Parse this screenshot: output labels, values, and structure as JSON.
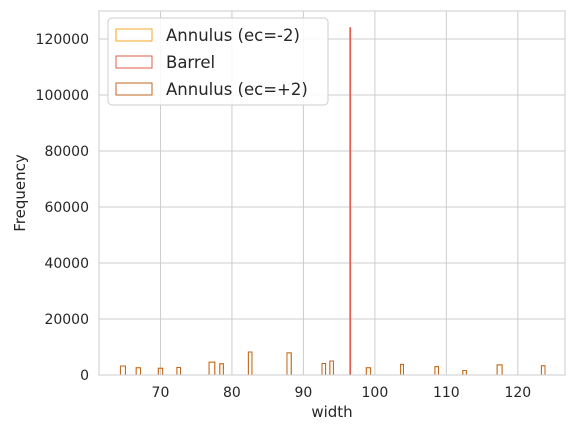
{
  "chart_data": {
    "type": "histogram",
    "title": "",
    "xlabel": "width",
    "ylabel": "Frequency",
    "xlim": [
      61.4,
      126.6
    ],
    "ylim": [
      0,
      130000
    ],
    "xticks": [
      70,
      80,
      90,
      100,
      110,
      120
    ],
    "yticks": [
      0,
      20000,
      40000,
      60000,
      80000,
      100000,
      120000
    ],
    "grid": true,
    "legend_position": "top-left",
    "series": [
      {
        "name": "Annulus (ec=-2)",
        "color": "#f5a623",
        "bins": [
          {
            "x0": 64.4,
            "x1": 65.1,
            "y": 3200
          },
          {
            "x0": 66.6,
            "x1": 67.2,
            "y": 2600
          },
          {
            "x0": 69.7,
            "x1": 70.3,
            "y": 2400
          },
          {
            "x0": 72.3,
            "x1": 72.8,
            "y": 2700
          },
          {
            "x0": 76.8,
            "x1": 77.6,
            "y": 4600
          },
          {
            "x0": 78.3,
            "x1": 78.8,
            "y": 4000
          },
          {
            "x0": 82.3,
            "x1": 82.8,
            "y": 8200
          },
          {
            "x0": 87.7,
            "x1": 88.3,
            "y": 7900
          },
          {
            "x0": 92.6,
            "x1": 93.1,
            "y": 4100
          },
          {
            "x0": 93.7,
            "x1": 94.2,
            "y": 5000
          },
          {
            "x0": 98.8,
            "x1": 99.4,
            "y": 2600
          },
          {
            "x0": 103.6,
            "x1": 104.0,
            "y": 3800
          },
          {
            "x0": 108.4,
            "x1": 108.9,
            "y": 3000
          },
          {
            "x0": 112.3,
            "x1": 112.8,
            "y": 1600
          },
          {
            "x0": 117.1,
            "x1": 117.8,
            "y": 3600
          },
          {
            "x0": 123.3,
            "x1": 123.8,
            "y": 3300
          }
        ]
      },
      {
        "name": "Barrel",
        "color": "#e05c4b",
        "bins": [
          {
            "x0": 96.5,
            "x1": 96.6,
            "y": 124000
          }
        ]
      },
      {
        "name": "Annulus (ec=+2)",
        "color": "#c2661f",
        "bins": [
          {
            "x0": 64.4,
            "x1": 65.1,
            "y": 3200
          },
          {
            "x0": 66.6,
            "x1": 67.2,
            "y": 2600
          },
          {
            "x0": 69.7,
            "x1": 70.3,
            "y": 2400
          },
          {
            "x0": 72.3,
            "x1": 72.8,
            "y": 2700
          },
          {
            "x0": 76.8,
            "x1": 77.6,
            "y": 4600
          },
          {
            "x0": 78.3,
            "x1": 78.8,
            "y": 4000
          },
          {
            "x0": 82.3,
            "x1": 82.8,
            "y": 8200
          },
          {
            "x0": 87.7,
            "x1": 88.3,
            "y": 7900
          },
          {
            "x0": 92.6,
            "x1": 93.1,
            "y": 4100
          },
          {
            "x0": 93.7,
            "x1": 94.2,
            "y": 5000
          },
          {
            "x0": 98.8,
            "x1": 99.4,
            "y": 2600
          },
          {
            "x0": 103.6,
            "x1": 104.0,
            "y": 3800
          },
          {
            "x0": 108.4,
            "x1": 108.9,
            "y": 3000
          },
          {
            "x0": 112.3,
            "x1": 112.8,
            "y": 1600
          },
          {
            "x0": 117.1,
            "x1": 117.8,
            "y": 3600
          },
          {
            "x0": 123.3,
            "x1": 123.8,
            "y": 3300
          }
        ]
      }
    ]
  }
}
